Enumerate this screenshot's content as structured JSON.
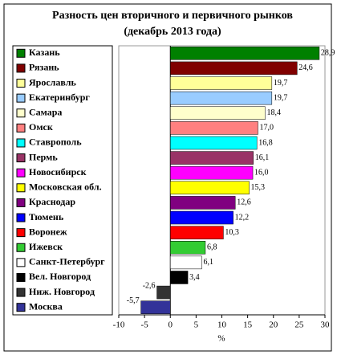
{
  "chart_data": {
    "type": "bar",
    "orientation": "horizontal",
    "title": "Разность цен вторичного и первичного рынков",
    "subtitle": "(декабрь 2013 года)",
    "x_label": "%",
    "categories": [
      "Казань",
      "Рязань",
      "Ярославль",
      "Екатеринбург",
      "Самара",
      "Омск",
      "Ставрополь",
      "Пермь",
      "Новосибирск",
      "Московская обл.",
      "Краснодар",
      "Тюмень",
      "Воронеж",
      "Ижевск",
      "Санкт-Петербург",
      "Вел. Новгород",
      "Ниж. Новгород",
      "Москва"
    ],
    "values": [
      28.9,
      24.6,
      19.7,
      19.7,
      18.4,
      17.0,
      16.8,
      16.1,
      16.0,
      15.3,
      12.6,
      12.2,
      10.3,
      6.8,
      6.1,
      3.4,
      -2.6,
      -5.7
    ],
    "value_labels": [
      "28,9",
      "24,6",
      "19,7",
      "19,7",
      "18,4",
      "17,0",
      "16,8",
      "16,1",
      "16,0",
      "15,3",
      "12,6",
      "12,2",
      "10,3",
      "6,8",
      "6,1",
      "3,4",
      "-2,6",
      "-5,7"
    ],
    "colors": [
      "#008000",
      "#800000",
      "#ffff99",
      "#99ccff",
      "#ffffcc",
      "#ff8080",
      "#00ffff",
      "#993366",
      "#ff00ff",
      "#ffff00",
      "#800080",
      "#0000ff",
      "#ff0000",
      "#33cc33",
      "#ffffff",
      "#000000",
      "#333333",
      "#333399"
    ],
    "xlim": [
      -10,
      30
    ],
    "xticks": [
      -10,
      -5,
      0,
      5,
      10,
      15,
      20,
      25,
      30
    ]
  }
}
